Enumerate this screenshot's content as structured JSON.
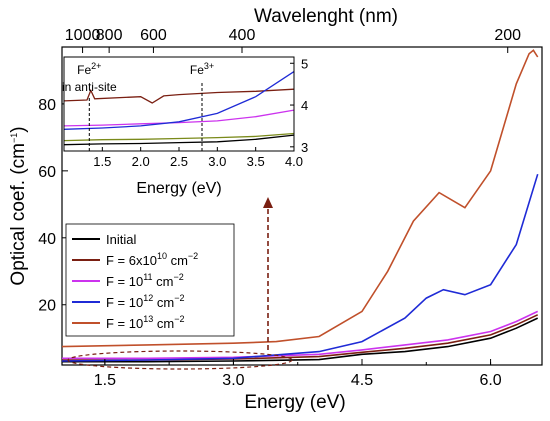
{
  "chart_data": [
    {
      "type": "line",
      "xlabel": "Energy (eV)",
      "ylabel_main": "Optical coef. (cm",
      "ylabel_sup": "−1",
      "ylabel_close": ")",
      "top_axis_label": "Wavelenght (nm)",
      "xlim": [
        1.0,
        6.6
      ],
      "ylim": [
        2,
        97
      ],
      "x_ticks": [
        1.5,
        3.0,
        4.5,
        6.0
      ],
      "x_tick_labels": [
        "1.5",
        "3.0",
        "4.5",
        "6.0"
      ],
      "y_ticks": [
        20,
        40,
        60,
        80
      ],
      "y_tick_labels": [
        "20",
        "40",
        "60",
        "80"
      ],
      "top_ticks_nm": [
        1000,
        800,
        600,
        400,
        200
      ],
      "top_tick_labels": [
        "1000",
        "800",
        "600",
        "400",
        "200"
      ],
      "legend_position": "bottom-left",
      "series": [
        {
          "name": "Initial",
          "color": "#000000",
          "x": [
            1.0,
            2.0,
            3.0,
            4.0,
            4.5,
            5.0,
            5.5,
            6.0,
            6.3,
            6.55
          ],
          "y": [
            3.0,
            3.0,
            3.2,
            3.6,
            5.2,
            6.0,
            7.5,
            10.0,
            13.0,
            16.0
          ]
        },
        {
          "name": "F = 6x10",
          "name_sup": "10",
          "name_unit": " cm",
          "name_unit_sup": "−2",
          "color": "#7a1f12",
          "x": [
            1.0,
            2.0,
            3.0,
            4.0,
            4.5,
            5.0,
            5.5,
            6.0,
            6.3,
            6.55
          ],
          "y": [
            3.5,
            3.5,
            3.8,
            4.5,
            5.8,
            7.0,
            8.5,
            11.0,
            14.0,
            17.0
          ]
        },
        {
          "name": "F = 10",
          "name_sup": "11",
          "name_unit": " cm",
          "name_unit_sup": "−2",
          "color": "#cc33ee",
          "x": [
            1.0,
            2.0,
            3.0,
            4.0,
            4.5,
            5.0,
            5.5,
            6.0,
            6.3,
            6.55
          ],
          "y": [
            4.0,
            4.0,
            4.3,
            5.2,
            6.5,
            8.0,
            9.5,
            12.0,
            15.0,
            18.0
          ]
        },
        {
          "name": "F = 10",
          "name_sup": "12",
          "name_unit": " cm",
          "name_unit_sup": "−2",
          "color": "#1f2bd6",
          "x": [
            1.0,
            2.0,
            3.0,
            4.0,
            4.5,
            5.0,
            5.25,
            5.45,
            5.7,
            6.0,
            6.3,
            6.55
          ],
          "y": [
            3.2,
            3.5,
            4.0,
            6.0,
            9.0,
            16.0,
            22.0,
            24.5,
            23.0,
            26.0,
            38.0,
            59.0
          ]
        },
        {
          "name": "F = 10",
          "name_sup": "13",
          "name_unit": " cm",
          "name_unit_sup": "−2",
          "color": "#c0502b",
          "x": [
            1.0,
            2.0,
            3.0,
            3.5,
            4.0,
            4.5,
            4.8,
            5.1,
            5.4,
            5.7,
            6.0,
            6.3,
            6.45,
            6.5,
            6.55
          ],
          "y": [
            7.5,
            8.0,
            8.5,
            9.0,
            10.5,
            18.0,
            30.0,
            45.0,
            53.5,
            49.0,
            60.0,
            86.0,
            95.0,
            96.0,
            94.0
          ]
        }
      ]
    },
    {
      "type": "line",
      "xlabel": "Energy (eV)",
      "xlim": [
        1.0,
        4.0
      ],
      "ylim": [
        2.9,
        5.15
      ],
      "x_ticks": [
        1.5,
        2.0,
        2.5,
        3.0,
        3.5,
        4.0
      ],
      "x_tick_labels": [
        "1.5",
        "2.0",
        "2.5",
        "3.0",
        "3.5",
        "4.0"
      ],
      "y_ticks": [
        3,
        4,
        5
      ],
      "y_tick_labels": [
        "3",
        "4",
        "5"
      ],
      "annotations": [
        {
          "text": "Fe",
          "sup": "2+",
          "line2": "in anti-site",
          "x": 1.33
        },
        {
          "text": "Fe",
          "sup": "3+",
          "x": 2.8
        }
      ],
      "series": [
        {
          "name": "Initial",
          "color": "#000000",
          "x": [
            1.0,
            1.5,
            2.0,
            2.5,
            3.0,
            3.5,
            4.0
          ],
          "y": [
            3.05,
            3.07,
            3.08,
            3.1,
            3.12,
            3.18,
            3.28
          ]
        },
        {
          "name": "F = 6x10",
          "color": "#7a1f12",
          "x": [
            1.0,
            1.3,
            1.35,
            1.4,
            2.0,
            2.15,
            2.3,
            2.5,
            3.0,
            3.5,
            4.0
          ],
          "y": [
            4.1,
            4.12,
            4.35,
            4.15,
            4.2,
            4.05,
            4.22,
            4.25,
            4.3,
            4.33,
            4.38
          ]
        },
        {
          "name": "F = 10^11",
          "color": "#cc33ee",
          "x": [
            1.0,
            1.5,
            2.0,
            2.5,
            3.0,
            3.5,
            4.0
          ],
          "y": [
            3.5,
            3.52,
            3.55,
            3.58,
            3.62,
            3.72,
            3.88
          ]
        },
        {
          "name": "F = 10^12",
          "color": "#1f2bd6",
          "x": [
            1.0,
            1.5,
            2.0,
            2.5,
            3.0,
            3.5,
            4.0
          ],
          "y": [
            3.42,
            3.45,
            3.5,
            3.6,
            3.8,
            4.2,
            4.8
          ]
        },
        {
          "name": "F = 10^13",
          "color": "#7a8a1a",
          "x": [
            1.0,
            1.5,
            2.0,
            2.5,
            3.0,
            3.5,
            4.0
          ],
          "y": [
            3.15,
            3.17,
            3.18,
            3.2,
            3.22,
            3.25,
            3.32
          ]
        }
      ]
    }
  ]
}
